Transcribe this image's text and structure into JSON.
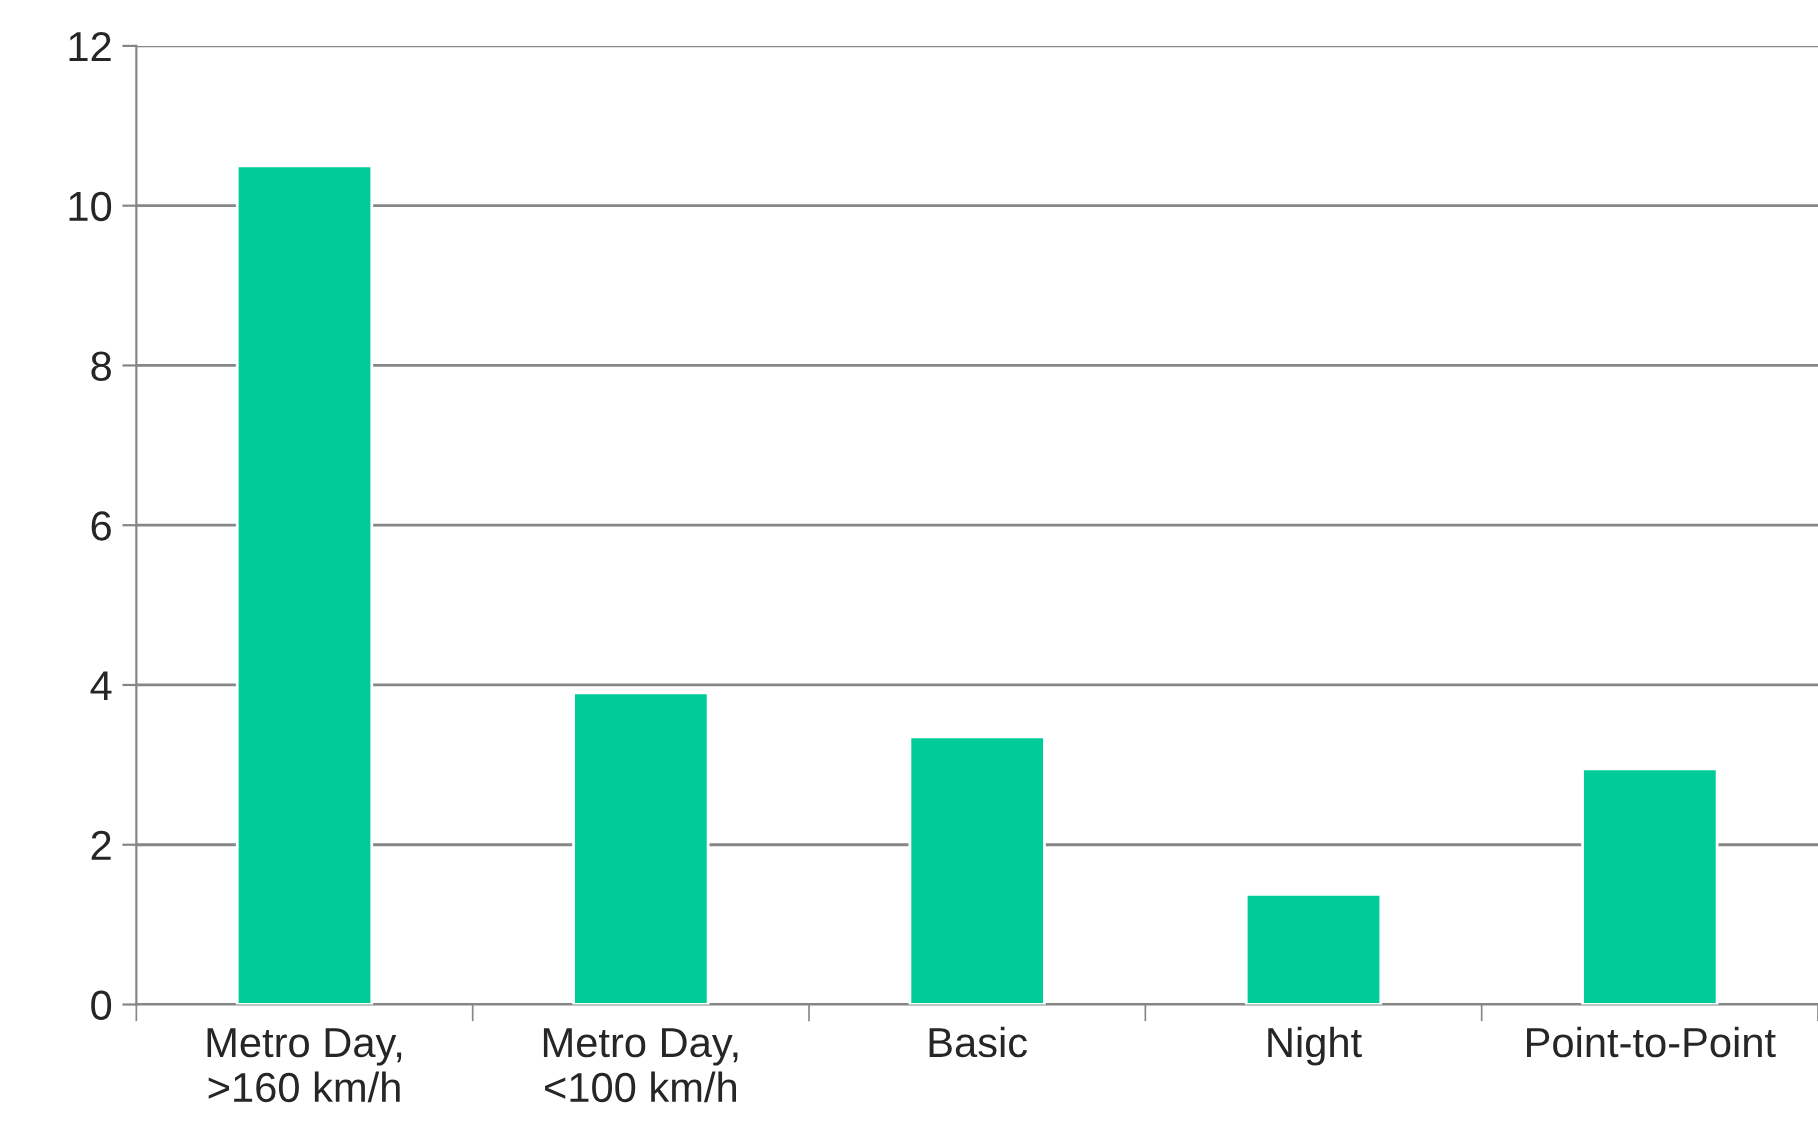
{
  "chart_data": {
    "type": "bar",
    "categories": [
      "Metro Day,\n>160 km/h",
      "Metro Day,\n<100 km/h",
      "Basic",
      "Night",
      "Point-to-Point"
    ],
    "values": [
      10.5,
      3.9,
      3.35,
      1.38,
      2.95
    ],
    "color": "#00cc99",
    "ylim": [
      0,
      12
    ],
    "yticks": [
      0,
      2,
      4,
      6,
      8,
      10,
      12
    ],
    "grid": "y",
    "legend": false
  }
}
